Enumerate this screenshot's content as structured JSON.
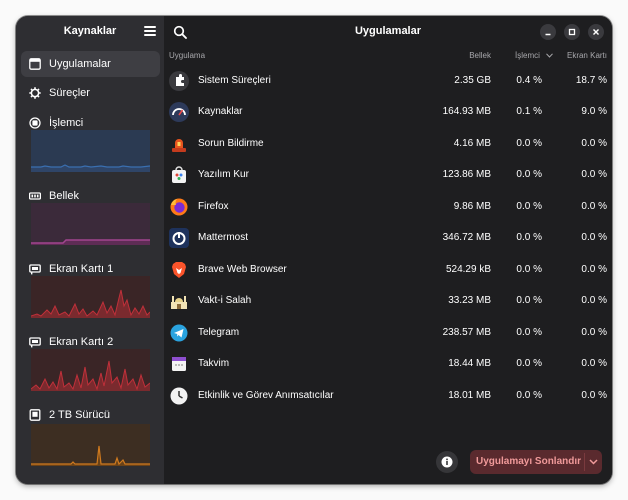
{
  "sidebar": {
    "title": "Kaynaklar",
    "items": [
      {
        "label": "Uygulamalar",
        "icon": "apps-icon"
      },
      {
        "label": "Süreçler",
        "icon": "processes-icon"
      },
      {
        "label": "İşlemci",
        "icon": "cpu-icon"
      },
      {
        "label": "Bellek",
        "icon": "memory-icon"
      },
      {
        "label": "Ekran Kartı 1",
        "icon": "gpu-icon"
      },
      {
        "label": "Ekran Kartı 2",
        "icon": "gpu-icon"
      },
      {
        "label": "2 TB Sürücü",
        "icon": "drive-icon"
      }
    ]
  },
  "main": {
    "title": "Uygulamalar",
    "columns": {
      "name": "Uygulama",
      "memory": "Bellek",
      "cpu": "İşlemci",
      "gpu": "Ekran Kartı"
    },
    "rows": [
      {
        "name": "Sistem Süreçleri",
        "memory": "2.35 GB",
        "cpu": "0.4 %",
        "gpu": "18.7 %",
        "icon": "system-processes-icon"
      },
      {
        "name": "Kaynaklar",
        "memory": "164.93 MB",
        "cpu": "0.1 %",
        "gpu": "9.0 %",
        "icon": "resources-app-icon"
      },
      {
        "name": "Sorun Bildirme",
        "memory": "4.16 MB",
        "cpu": "0.0 %",
        "gpu": "0.0 %",
        "icon": "problem-reporting-icon"
      },
      {
        "name": "Yazılım Kur",
        "memory": "123.86 MB",
        "cpu": "0.0 %",
        "gpu": "0.0 %",
        "icon": "software-install-icon"
      },
      {
        "name": "Firefox",
        "memory": "9.86 MB",
        "cpu": "0.0 %",
        "gpu": "0.0 %",
        "icon": "firefox-icon"
      },
      {
        "name": "Mattermost",
        "memory": "346.72 MB",
        "cpu": "0.0 %",
        "gpu": "0.0 %",
        "icon": "mattermost-icon"
      },
      {
        "name": "Brave Web Browser",
        "memory": "524.29 kB",
        "cpu": "0.0 %",
        "gpu": "0.0 %",
        "icon": "brave-icon"
      },
      {
        "name": "Vakt-i Salah",
        "memory": "33.23 MB",
        "cpu": "0.0 %",
        "gpu": "0.0 %",
        "icon": "vakt-i-salah-icon"
      },
      {
        "name": "Telegram",
        "memory": "238.57 MB",
        "cpu": "0.0 %",
        "gpu": "0.0 %",
        "icon": "telegram-icon"
      },
      {
        "name": "Takvim",
        "memory": "18.44 MB",
        "cpu": "0.0 %",
        "gpu": "0.0 %",
        "icon": "calendar-icon"
      },
      {
        "name": "Etkinlik ve Görev Anımsatıcılar",
        "memory": "18.01 MB",
        "cpu": "0.0 %",
        "gpu": "0.0 %",
        "icon": "reminders-clock-icon"
      }
    ],
    "end_button_label": "Uygulamayı Sonlandır"
  },
  "colors": {
    "cpu_graph": "#3a6fb0",
    "memory_graph": "#a2458f",
    "gpu_graph": "#c0303a",
    "drive_graph": "#d07a1e",
    "end_button_bg": "#5a2a2e",
    "end_button_text": "#f09a9a"
  }
}
